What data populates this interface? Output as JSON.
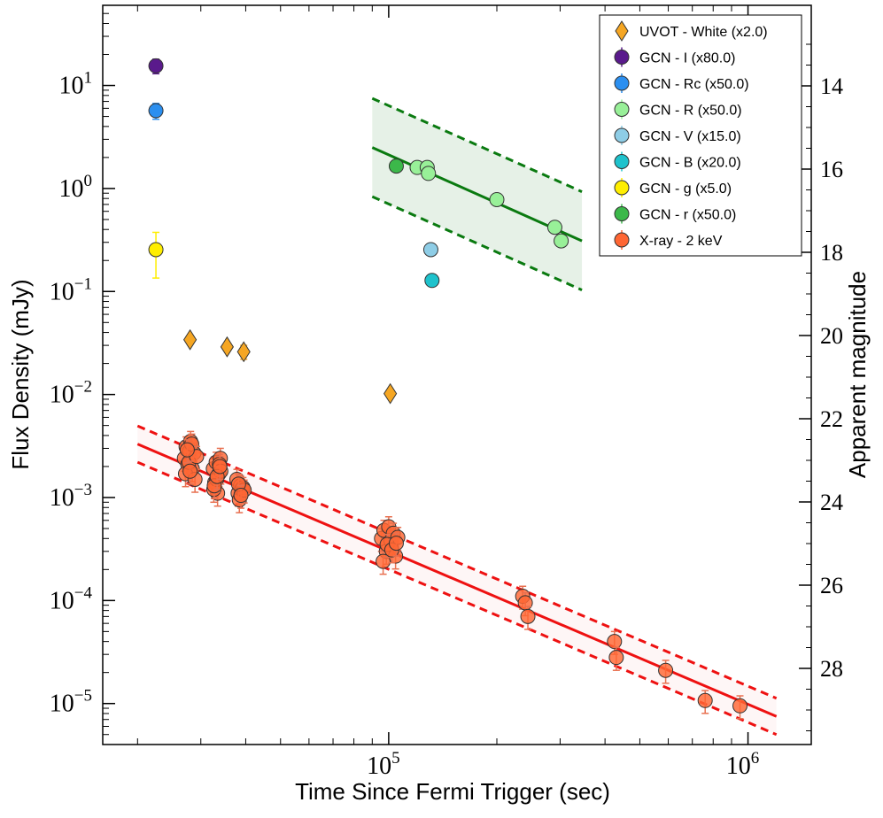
{
  "chart_data": {
    "type": "scatter",
    "title": "",
    "xlabel": "Time Since Fermi Trigger (sec)",
    "ylabel": "Flux Density (mJy)",
    "ylabel_right": "Apparent magnitude",
    "xscale": "log",
    "yscale": "log",
    "xlim": [
      16000,
      1500000
    ],
    "ylim": [
      4e-06,
      60
    ],
    "x_ticks": [
      {
        "value": 100000,
        "label": "10^5"
      },
      {
        "value": 1000000,
        "label": "10^6"
      }
    ],
    "y_ticks": [
      {
        "value": 10,
        "label": "10^1"
      },
      {
        "value": 1,
        "label": "10^0"
      },
      {
        "value": 0.1,
        "label": "10^-1"
      },
      {
        "value": 0.01,
        "label": "10^-2"
      },
      {
        "value": 0.001,
        "label": "10^-3"
      },
      {
        "value": 0.0001,
        "label": "10^-4"
      },
      {
        "value": 1e-05,
        "label": "10^-5"
      }
    ],
    "right_ticks": [
      "14",
      "16",
      "18",
      "20",
      "22",
      "24",
      "26",
      "28"
    ],
    "right_tick_values": [
      14,
      16,
      18,
      20,
      22,
      24,
      26,
      28
    ],
    "legend_position": "top-right",
    "series": [
      {
        "name": "UVOT - White (x2.0)",
        "marker": "diamond",
        "color": "#f5a623",
        "x": [
          28000,
          35500,
          39500,
          101000
        ],
        "y": [
          0.034,
          0.029,
          0.026,
          0.0102
        ],
        "yerr": [
          0,
          0,
          0.004,
          0
        ]
      },
      {
        "name": "GCN - I (x80.0)",
        "marker": "circle",
        "color": "#5a1a8c",
        "x": [
          22500
        ],
        "y": [
          15.5
        ],
        "yerr": [
          2.5
        ]
      },
      {
        "name": "GCN - Rc (x50.0)",
        "marker": "circle",
        "color": "#2b8ff0",
        "x": [
          22500
        ],
        "y": [
          5.7
        ],
        "yerr": [
          1.0
        ]
      },
      {
        "name": "GCN - R (x50.0)",
        "marker": "circle",
        "color": "#98f098",
        "x": [
          120000,
          128000,
          129000,
          200000,
          290000,
          302000
        ],
        "y": [
          1.6,
          1.6,
          1.4,
          0.78,
          0.42,
          0.31
        ],
        "yerr": [
          0,
          0,
          0,
          0,
          0,
          0
        ]
      },
      {
        "name": "GCN - V (x15.0)",
        "marker": "circle",
        "color": "#8ecde6",
        "x": [
          131000
        ],
        "y": [
          0.255
        ],
        "yerr": [
          0
        ]
      },
      {
        "name": "GCN - B (x20.0)",
        "marker": "circle",
        "color": "#1ec2cc",
        "x": [
          132000
        ],
        "y": [
          0.128
        ],
        "yerr": [
          0
        ]
      },
      {
        "name": "GCN - g (x5.0)",
        "marker": "circle",
        "color": "#ffee00",
        "x": [
          22500
        ],
        "y": [
          0.255
        ],
        "yerr": [
          0.12
        ]
      },
      {
        "name": "GCN - r (x50.0)",
        "marker": "circle",
        "color": "#3cb84a",
        "x": [
          105000
        ],
        "y": [
          1.65
        ],
        "yerr": [
          0
        ]
      },
      {
        "name": "X-ray - 2 keV",
        "marker": "circle",
        "color": "#ff6633",
        "x": [
          27000,
          27300,
          27600,
          27900,
          28100,
          28400,
          28700,
          27200,
          27800,
          28300,
          28900,
          29200,
          27500,
          28000,
          32500,
          32800,
          33100,
          33400,
          33700,
          34000,
          32600,
          33200,
          33800,
          34100,
          32700,
          33300,
          33900,
          37800,
          38100,
          38400,
          38700,
          39000,
          39300,
          39600,
          38200,
          38800,
          95500,
          97000,
          98500,
          100000,
          101500,
          103000,
          104500,
          106000,
          96500,
          99000,
          102000,
          105000,
          236000,
          240000,
          244000,
          425000,
          430000,
          590000,
          760000,
          950000
        ],
        "y": [
          0.0024,
          0.0031,
          0.0021,
          0.0028,
          0.0035,
          0.0019,
          0.0027,
          0.0017,
          0.0022,
          0.0033,
          0.0015,
          0.0025,
          0.0029,
          0.0018,
          0.0019,
          0.0014,
          0.0022,
          0.0011,
          0.0017,
          0.0024,
          0.0012,
          0.0015,
          0.0021,
          0.0018,
          0.0013,
          0.0016,
          0.002,
          0.0015,
          0.0011,
          0.00095,
          0.0013,
          0.0012,
          0.00125,
          0.00118,
          0.00135,
          0.00105,
          0.0004,
          0.00048,
          0.0003,
          0.00052,
          0.00038,
          0.00045,
          0.00027,
          0.00041,
          0.00024,
          0.00035,
          0.00031,
          0.00036,
          0.00011,
          9.5e-05,
          7e-05,
          4e-05,
          2.8e-05,
          2.1e-05,
          1.07e-05,
          9.5e-06
        ],
        "yerr_frac": 0.25
      }
    ],
    "fits": [
      {
        "name": "optical-fit",
        "color": "#0a7a10",
        "x": [
          90000,
          345000
        ],
        "y": [
          2.5,
          0.31
        ],
        "band_factor": 3.0
      },
      {
        "name": "xray-fit",
        "color": "#ee1111",
        "x": [
          20000,
          1200000
        ],
        "y": [
          0.0033,
          7.5e-06
        ],
        "band_factor": 1.5
      }
    ]
  }
}
